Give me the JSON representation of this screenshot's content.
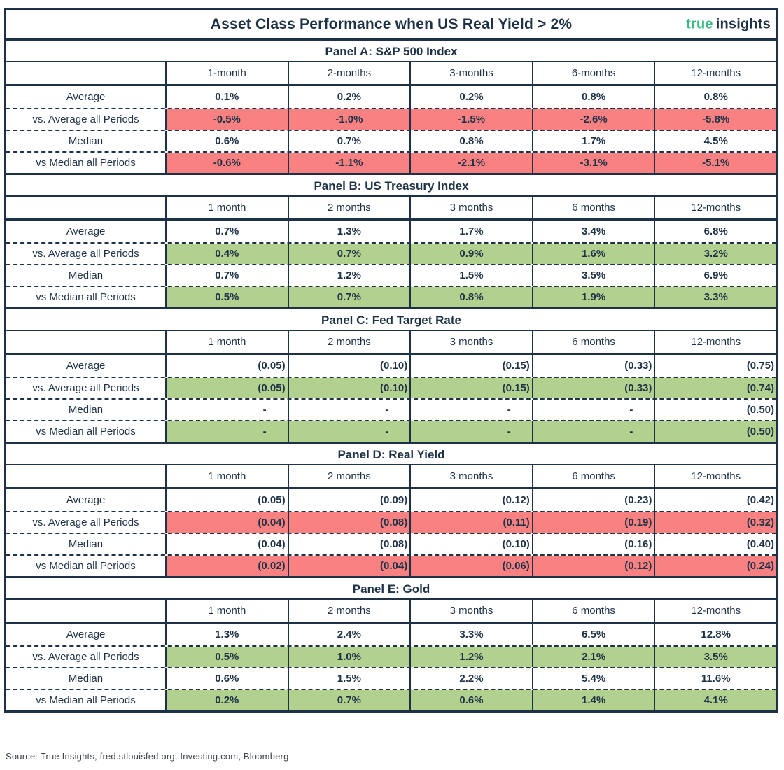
{
  "header": {
    "title": "Asset Class Performance when US Real Yield > 2%",
    "logo_part1": "true",
    "logo_part2": "insights"
  },
  "footer": {
    "source": "Source: True Insights, fred.stlouisfed.org, Investing.com, Bloomberg"
  },
  "colors": {
    "navy": "#1e3247",
    "red": "#fa8181",
    "green": "#b2d18e",
    "logo_green": "#3cba85"
  },
  "chart_data": {
    "type": "table",
    "title": "Asset Class Performance when US Real Yield > 2%",
    "panels": [
      {
        "id": "panel-a",
        "title": "Panel A: S&P 500 Index",
        "columns": [
          "1-month",
          "2-months",
          "3-months",
          "6-months",
          "12-months"
        ],
        "value_align": "center",
        "highlight_color": "red",
        "rows": [
          {
            "label": "Average",
            "highlight": false,
            "values": [
              "0.1%",
              "0.2%",
              "0.2%",
              "0.8%",
              "0.8%"
            ]
          },
          {
            "label": "vs. Average all Periods",
            "highlight": true,
            "values": [
              "-0.5%",
              "-1.0%",
              "-1.5%",
              "-2.6%",
              "-5.8%"
            ]
          },
          {
            "label": "Median",
            "highlight": false,
            "values": [
              "0.6%",
              "0.7%",
              "0.8%",
              "1.7%",
              "4.5%"
            ]
          },
          {
            "label": "vs Median all Periods",
            "highlight": true,
            "values": [
              "-0.6%",
              "-1.1%",
              "-2.1%",
              "-3.1%",
              "-5.1%"
            ]
          }
        ]
      },
      {
        "id": "panel-b",
        "title": "Panel B: US Treasury Index",
        "columns": [
          "1 month",
          "2 months",
          "3 months",
          "6 months",
          "12-months"
        ],
        "value_align": "center",
        "highlight_color": "green",
        "rows": [
          {
            "label": "Average",
            "highlight": false,
            "values": [
              "0.7%",
              "1.3%",
              "1.7%",
              "3.4%",
              "6.8%"
            ]
          },
          {
            "label": "vs. Average all Periods",
            "highlight": true,
            "values": [
              "0.4%",
              "0.7%",
              "0.9%",
              "1.6%",
              "3.2%"
            ]
          },
          {
            "label": "Median",
            "highlight": false,
            "values": [
              "0.7%",
              "1.2%",
              "1.5%",
              "3.5%",
              "6.9%"
            ]
          },
          {
            "label": "vs Median all Periods",
            "highlight": true,
            "values": [
              "0.5%",
              "0.7%",
              "0.8%",
              "1.9%",
              "3.3%"
            ]
          }
        ]
      },
      {
        "id": "panel-c",
        "title": "Panel C: Fed Target Rate",
        "columns": [
          "1 month",
          "2 months",
          "3 months",
          "6 months",
          "12-months"
        ],
        "value_align": "right",
        "highlight_color": "green",
        "rows": [
          {
            "label": "Average",
            "highlight": false,
            "values": [
              "(0.05)",
              "(0.10)",
              "(0.15)",
              "(0.33)",
              "(0.75)"
            ]
          },
          {
            "label": "vs. Average all Periods",
            "highlight": true,
            "values": [
              "(0.05)",
              "(0.10)",
              "(0.15)",
              "(0.33)",
              "(0.74)"
            ]
          },
          {
            "label": "Median",
            "highlight": false,
            "values": [
              "-",
              "-",
              "-",
              "-",
              "(0.50)"
            ]
          },
          {
            "label": "vs Median all Periods",
            "highlight": true,
            "values": [
              "-",
              "-",
              "-",
              "-",
              "(0.50)"
            ]
          }
        ]
      },
      {
        "id": "panel-d",
        "title": "Panel D: Real Yield",
        "columns": [
          "1 month",
          "2 months",
          "3 months",
          "6 months",
          "12-months"
        ],
        "value_align": "right",
        "highlight_color": "red",
        "rows": [
          {
            "label": "Average",
            "highlight": false,
            "values": [
              "(0.05)",
              "(0.09)",
              "(0.12)",
              "(0.23)",
              "(0.42)"
            ]
          },
          {
            "label": "vs. Average all Periods",
            "highlight": true,
            "values": [
              "(0.04)",
              "(0.08)",
              "(0.11)",
              "(0.19)",
              "(0.32)"
            ]
          },
          {
            "label": "Median",
            "highlight": false,
            "values": [
              "(0.04)",
              "(0.08)",
              "(0.10)",
              "(0.16)",
              "(0.40)"
            ]
          },
          {
            "label": "vs Median all Periods",
            "highlight": true,
            "values": [
              "(0.02)",
              "(0.04)",
              "(0.06)",
              "(0.12)",
              "(0.24)"
            ]
          }
        ]
      },
      {
        "id": "panel-e",
        "title": "Panel E: Gold",
        "columns": [
          "1 month",
          "2 months",
          "3 months",
          "6 months",
          "12-months"
        ],
        "value_align": "center",
        "highlight_color": "green",
        "rows": [
          {
            "label": "Average",
            "highlight": false,
            "values": [
              "1.3%",
              "2.4%",
              "3.3%",
              "6.5%",
              "12.8%"
            ]
          },
          {
            "label": "vs. Average all Periods",
            "highlight": true,
            "values": [
              "0.5%",
              "1.0%",
              "1.2%",
              "2.1%",
              "3.5%"
            ]
          },
          {
            "label": "Median",
            "highlight": false,
            "values": [
              "0.6%",
              "1.5%",
              "2.2%",
              "5.4%",
              "11.6%"
            ]
          },
          {
            "label": "vs Median all Periods",
            "highlight": true,
            "values": [
              "0.2%",
              "0.7%",
              "0.6%",
              "1.4%",
              "4.1%"
            ]
          }
        ]
      }
    ]
  }
}
